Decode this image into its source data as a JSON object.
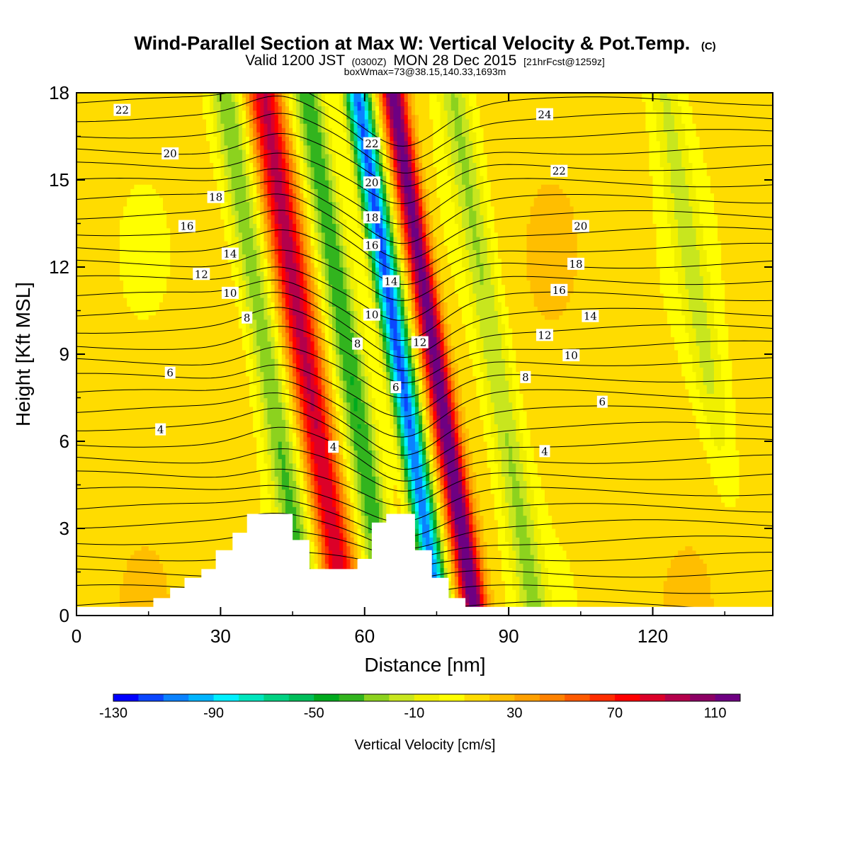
{
  "chart_data": {
    "type": "heatmap",
    "title": "Wind-Parallel Section at Max W: Vertical Velocity & Pot.Temp.",
    "title_copyright": "(C)",
    "subtitle_parts": [
      "Valid 1200 JST",
      "(0300Z)",
      "MON 28 Dec 2015",
      "[21hrFcst@1259z]"
    ],
    "subtitle2": "boxWmax=73@38.15,140.33,1693m",
    "xlabel": "Distance [nm]",
    "ylabel": "Height [Kft MSL]",
    "xlim": [
      0,
      145
    ],
    "ylim": [
      0,
      18
    ],
    "xticks": [
      0,
      30,
      60,
      90,
      120
    ],
    "xtick_labels": [
      "0",
      "30",
      "60",
      "90",
      "120"
    ],
    "yticks": [
      0,
      3,
      6,
      9,
      12,
      15,
      18
    ],
    "ytick_labels": [
      "0",
      "3",
      "6",
      "9",
      "12",
      "15",
      "18"
    ],
    "colorbar": {
      "label": "Vertical Velocity [cm/s]",
      "levels": [
        -130,
        -120,
        -110,
        -100,
        -90,
        -80,
        -70,
        -60,
        -50,
        -40,
        -30,
        -20,
        -10,
        0,
        10,
        20,
        30,
        40,
        50,
        60,
        70,
        80,
        90,
        100,
        110,
        120
      ],
      "colors": [
        "#0000ff",
        "#0a46ff",
        "#0a82ff",
        "#00b4ff",
        "#00f0ff",
        "#00e6be",
        "#00d282",
        "#00be5a",
        "#00aa1e",
        "#32b41e",
        "#8cd21e",
        "#c8e61e",
        "#f0f000",
        "#ffff00",
        "#ffdc00",
        "#ffbe00",
        "#ffa000",
        "#ff8200",
        "#ff5a00",
        "#ff2d00",
        "#ff0000",
        "#dc0028",
        "#b4004b",
        "#8c0064",
        "#6e0082"
      ],
      "tick_values": [
        -130,
        -90,
        -50,
        -10,
        30,
        70,
        110
      ],
      "tick_labels": [
        "-130",
        "-90",
        "-50",
        "-10",
        "30",
        "70",
        "110"
      ]
    },
    "terrain_kft": [
      [
        0,
        0.3
      ],
      [
        16,
        0.3
      ],
      [
        16,
        0.6
      ],
      [
        19.5,
        0.6
      ],
      [
        19.5,
        0.95
      ],
      [
        22.5,
        0.95
      ],
      [
        22.5,
        1.3
      ],
      [
        26,
        1.3
      ],
      [
        26,
        1.6
      ],
      [
        29,
        1.6
      ],
      [
        29,
        2.25
      ],
      [
        32.5,
        2.25
      ],
      [
        32.5,
        2.85
      ],
      [
        35.5,
        2.85
      ],
      [
        35.5,
        3.5
      ],
      [
        45,
        3.5
      ],
      [
        45,
        2.6
      ],
      [
        48.5,
        2.6
      ],
      [
        48.5,
        1.6
      ],
      [
        58.5,
        1.6
      ],
      [
        58.5,
        1.95
      ],
      [
        61.5,
        1.95
      ],
      [
        61.5,
        3.2
      ],
      [
        64.5,
        3.2
      ],
      [
        64.5,
        3.5
      ],
      [
        70.5,
        3.5
      ],
      [
        70.5,
        2.25
      ],
      [
        74,
        2.25
      ],
      [
        74,
        1.3
      ],
      [
        77.5,
        1.3
      ],
      [
        77.5,
        0.6
      ],
      [
        81,
        0.6
      ],
      [
        81,
        0.3
      ],
      [
        145,
        0.3
      ]
    ],
    "vertical_velocity_bands": [
      {
        "center_nm": 39.5,
        "w_cms": -45
      },
      {
        "center_nm": 47.5,
        "w_cms": 75
      },
      {
        "center_nm": 56.5,
        "w_cms": -55
      },
      {
        "center_nm": 67.0,
        "w_cms": -125
      },
      {
        "center_nm": 74.5,
        "w_cms": 105
      },
      {
        "center_nm": 87.0,
        "w_cms": -35
      },
      {
        "center_nm": 131.0,
        "w_cms": -25
      }
    ],
    "theta_contour_labels": [
      {
        "value": "22",
        "x": 9.5,
        "y": 17.4
      },
      {
        "value": "20",
        "x": 19.5,
        "y": 15.9
      },
      {
        "value": "18",
        "x": 29,
        "y": 14.4
      },
      {
        "value": "16",
        "x": 23,
        "y": 13.4
      },
      {
        "value": "14",
        "x": 32,
        "y": 12.45
      },
      {
        "value": "12",
        "x": 26,
        "y": 11.75
      },
      {
        "value": "10",
        "x": 32,
        "y": 11.1
      },
      {
        "value": "8",
        "x": 35.5,
        "y": 10.25
      },
      {
        "value": "6",
        "x": 19.5,
        "y": 8.35
      },
      {
        "value": "4",
        "x": 17.5,
        "y": 6.4
      },
      {
        "value": "4",
        "x": 53.5,
        "y": 5.8
      },
      {
        "value": "22",
        "x": 61.5,
        "y": 16.25
      },
      {
        "value": "20",
        "x": 61.5,
        "y": 14.9
      },
      {
        "value": "18",
        "x": 61.5,
        "y": 13.7
      },
      {
        "value": "16",
        "x": 61.5,
        "y": 12.75
      },
      {
        "value": "14",
        "x": 65.5,
        "y": 11.5
      },
      {
        "value": "10",
        "x": 61.5,
        "y": 10.35
      },
      {
        "value": "8",
        "x": 58.5,
        "y": 9.35
      },
      {
        "value": "6",
        "x": 66.5,
        "y": 7.85
      },
      {
        "value": "12",
        "x": 71.5,
        "y": 9.4
      },
      {
        "value": "24",
        "x": 97.5,
        "y": 17.25
      },
      {
        "value": "22",
        "x": 100.5,
        "y": 15.3
      },
      {
        "value": "20",
        "x": 105,
        "y": 13.4
      },
      {
        "value": "18",
        "x": 104,
        "y": 12.1
      },
      {
        "value": "16",
        "x": 100.5,
        "y": 11.2
      },
      {
        "value": "14",
        "x": 107,
        "y": 10.3
      },
      {
        "value": "12",
        "x": 97.5,
        "y": 9.65
      },
      {
        "value": "10",
        "x": 103,
        "y": 8.95
      },
      {
        "value": "8",
        "x": 93.5,
        "y": 8.2
      },
      {
        "value": "6",
        "x": 109.5,
        "y": 7.35
      },
      {
        "value": "4",
        "x": 97.5,
        "y": 5.65
      }
    ]
  }
}
